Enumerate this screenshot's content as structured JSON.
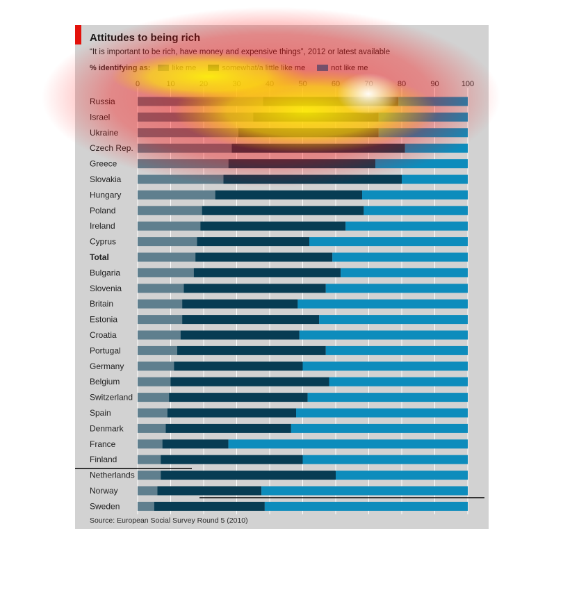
{
  "colors": {
    "like_me": "#5f7f8e",
    "somewhat": "#073c53",
    "not_like_me": "#0d8cbc",
    "accent": "#e3120b"
  },
  "chart_data": {
    "type": "bar",
    "orientation": "horizontal",
    "stacked": true,
    "title": "Attitudes to being rich",
    "subtitle": "“It is important to be rich, have money and expensive things”, 2012 or latest available",
    "legend_title": "% identifying as:",
    "xlim": [
      0,
      100
    ],
    "ticks": [
      0,
      10,
      20,
      30,
      40,
      50,
      60,
      70,
      80,
      90,
      100
    ],
    "grid": true,
    "legend_position": "top",
    "source": "Source: European Social Survey Round 5 (2010)",
    "categories": [
      "Russia",
      "Israel",
      "Ukraine",
      "Czech Rep.",
      "Greece",
      "Slovakia",
      "Hungary",
      "Poland",
      "Ireland",
      "Cyprus",
      "Total",
      "Bulgaria",
      "Slovenia",
      "Britain",
      "Estonia",
      "Croatia",
      "Portugal",
      "Germany",
      "Belgium",
      "Switzerland",
      "Spain",
      "Denmark",
      "France",
      "Finland",
      "Netherlands",
      "Norway",
      "Sweden"
    ],
    "bold_categories": [
      "Total"
    ],
    "series": [
      {
        "name": "like me",
        "values": [
          38,
          35,
          30.5,
          28.5,
          27.5,
          26,
          23.5,
          19.5,
          19,
          18,
          17.5,
          17,
          14,
          13.5,
          13.5,
          13,
          12,
          11,
          10,
          9.5,
          9,
          8.5,
          7.5,
          7,
          7,
          6,
          5
        ]
      },
      {
        "name": "somewhat/a little like me",
        "values": [
          41,
          38,
          42.5,
          52.5,
          44.5,
          54,
          44.5,
          49,
          44,
          34,
          41.5,
          44.5,
          43,
          35,
          41.5,
          36,
          45,
          39,
          48,
          42,
          39,
          38,
          20,
          43,
          53,
          31.5,
          33.5
        ]
      },
      {
        "name": "not like me",
        "values": [
          21,
          27,
          27,
          19,
          28,
          20,
          32,
          31.5,
          37,
          48,
          41,
          38.5,
          43,
          51.5,
          45,
          51,
          43,
          50,
          42,
          48.5,
          52,
          53.5,
          72.5,
          50,
          40,
          62.5,
          61.5
        ]
      }
    ]
  }
}
